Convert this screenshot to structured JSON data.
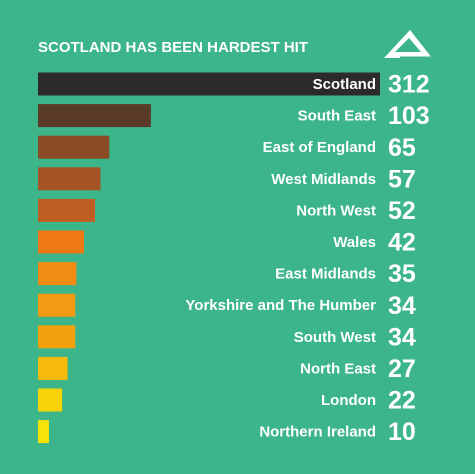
{
  "chart_data": {
    "type": "bar",
    "orientation": "horizontal",
    "title": "SCOTLAND HAS BEEN HARDEST HIT",
    "categories": [
      "Scotland",
      "South East",
      "East of England",
      "West Midlands",
      "North West",
      "Wales",
      "East Midlands",
      "Yorkshire and The Humber",
      "South West",
      "North East",
      "London",
      "Northern Ireland"
    ],
    "values": [
      312,
      103,
      65,
      57,
      52,
      42,
      35,
      34,
      34,
      27,
      22,
      10
    ],
    "colors": [
      "#2b2b2b",
      "#5a3a29",
      "#8a4a26",
      "#a55426",
      "#bf5e22",
      "#ee7915",
      "#f28b12",
      "#f39a12",
      "#f4a110",
      "#f6b90c",
      "#f8d30a",
      "#f6e30a"
    ]
  }
}
